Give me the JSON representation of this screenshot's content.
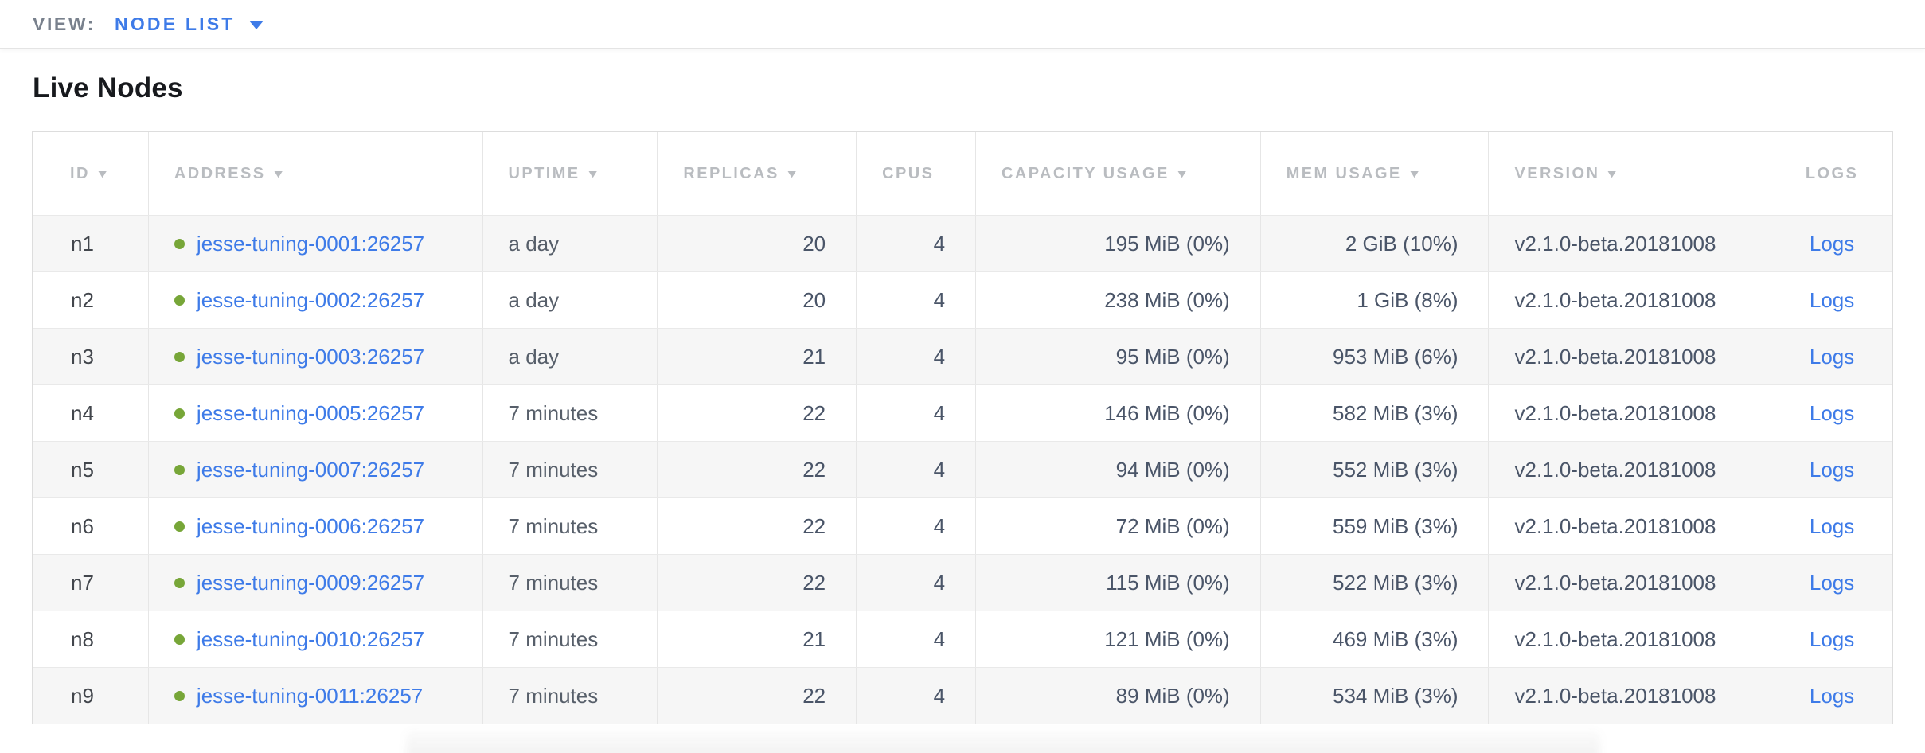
{
  "view_bar": {
    "label": "VIEW:",
    "selected": "NODE LIST"
  },
  "page_title": "Live Nodes",
  "colors": {
    "link_blue": "#3e7be8",
    "status_green": "#77a638",
    "header_gray": "#b9bcc0",
    "row_stripe": "#f6f6f6"
  },
  "table": {
    "columns": [
      {
        "key": "id",
        "label": "ID",
        "sortable": true,
        "align": "left"
      },
      {
        "key": "address",
        "label": "ADDRESS",
        "sortable": true,
        "align": "left"
      },
      {
        "key": "uptime",
        "label": "UPTIME",
        "sortable": true,
        "align": "left"
      },
      {
        "key": "replicas",
        "label": "REPLICAS",
        "sortable": true,
        "align": "right"
      },
      {
        "key": "cpus",
        "label": "CPUS",
        "sortable": false,
        "align": "right"
      },
      {
        "key": "capacity",
        "label": "CAPACITY USAGE",
        "sortable": true,
        "align": "right"
      },
      {
        "key": "mem",
        "label": "MEM USAGE",
        "sortable": true,
        "align": "right"
      },
      {
        "key": "version",
        "label": "VERSION",
        "sortable": true,
        "align": "left"
      },
      {
        "key": "logs",
        "label": "LOGS",
        "sortable": false,
        "align": "center"
      }
    ],
    "rows": [
      {
        "id": "n1",
        "address": "jesse-tuning-0001:26257",
        "uptime": "a day",
        "replicas": "20",
        "cpus": "4",
        "capacity": "195 MiB (0%)",
        "mem": "2 GiB (10%)",
        "version": "v2.1.0-beta.20181008",
        "logs": "Logs"
      },
      {
        "id": "n2",
        "address": "jesse-tuning-0002:26257",
        "uptime": "a day",
        "replicas": "20",
        "cpus": "4",
        "capacity": "238 MiB (0%)",
        "mem": "1 GiB (8%)",
        "version": "v2.1.0-beta.20181008",
        "logs": "Logs"
      },
      {
        "id": "n3",
        "address": "jesse-tuning-0003:26257",
        "uptime": "a day",
        "replicas": "21",
        "cpus": "4",
        "capacity": "95 MiB (0%)",
        "mem": "953 MiB (6%)",
        "version": "v2.1.0-beta.20181008",
        "logs": "Logs"
      },
      {
        "id": "n4",
        "address": "jesse-tuning-0005:26257",
        "uptime": "7 minutes",
        "replicas": "22",
        "cpus": "4",
        "capacity": "146 MiB (0%)",
        "mem": "582 MiB (3%)",
        "version": "v2.1.0-beta.20181008",
        "logs": "Logs"
      },
      {
        "id": "n5",
        "address": "jesse-tuning-0007:26257",
        "uptime": "7 minutes",
        "replicas": "22",
        "cpus": "4",
        "capacity": "94 MiB (0%)",
        "mem": "552 MiB (3%)",
        "version": "v2.1.0-beta.20181008",
        "logs": "Logs"
      },
      {
        "id": "n6",
        "address": "jesse-tuning-0006:26257",
        "uptime": "7 minutes",
        "replicas": "22",
        "cpus": "4",
        "capacity": "72 MiB (0%)",
        "mem": "559 MiB (3%)",
        "version": "v2.1.0-beta.20181008",
        "logs": "Logs"
      },
      {
        "id": "n7",
        "address": "jesse-tuning-0009:26257",
        "uptime": "7 minutes",
        "replicas": "22",
        "cpus": "4",
        "capacity": "115 MiB (0%)",
        "mem": "522 MiB (3%)",
        "version": "v2.1.0-beta.20181008",
        "logs": "Logs"
      },
      {
        "id": "n8",
        "address": "jesse-tuning-0010:26257",
        "uptime": "7 minutes",
        "replicas": "21",
        "cpus": "4",
        "capacity": "121 MiB (0%)",
        "mem": "469 MiB (3%)",
        "version": "v2.1.0-beta.20181008",
        "logs": "Logs"
      },
      {
        "id": "n9",
        "address": "jesse-tuning-0011:26257",
        "uptime": "7 minutes",
        "replicas": "22",
        "cpus": "4",
        "capacity": "89 MiB (0%)",
        "mem": "534 MiB (3%)",
        "version": "v2.1.0-beta.20181008",
        "logs": "Logs"
      }
    ]
  }
}
